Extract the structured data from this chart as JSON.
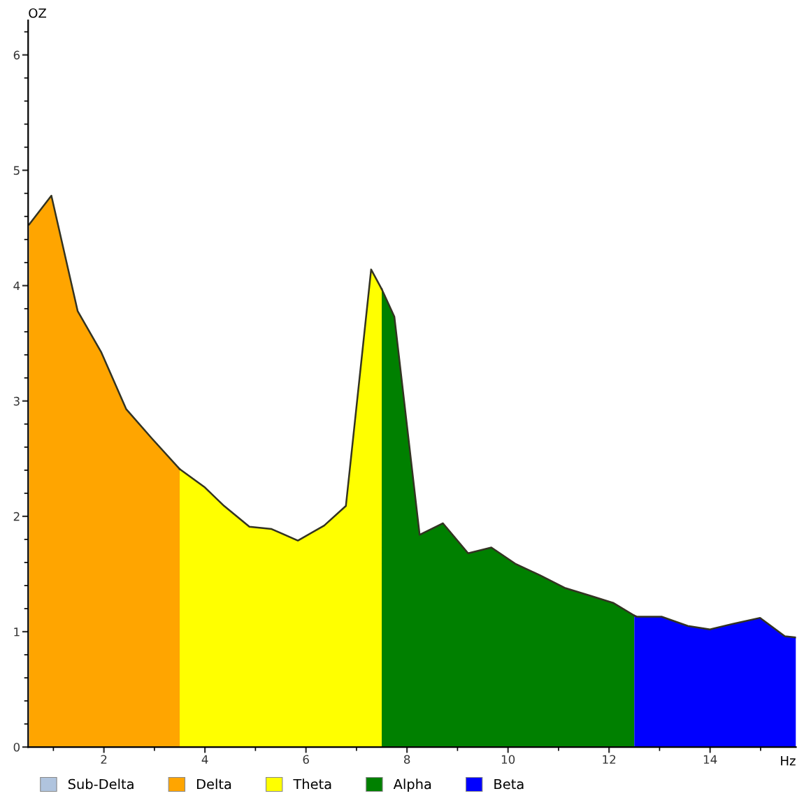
{
  "chart_data": {
    "type": "area",
    "ylabel": "OZ",
    "xlabel": "Hz",
    "series": [
      {
        "name": "Sub-Delta",
        "color": "#b0c4de"
      },
      {
        "name": "Delta",
        "color": "#ffa500",
        "x": [
          0.52,
          0.96,
          1.48,
          1.95,
          2.44,
          2.96,
          3.5
        ],
        "values": [
          4.53,
          4.78,
          3.78,
          3.42,
          2.93,
          2.67,
          2.41
        ]
      },
      {
        "name": "Theta",
        "color": "#ffff00",
        "x": [
          3.5,
          4.0,
          4.38,
          4.88,
          5.32,
          5.84,
          6.36,
          6.79,
          7.29,
          7.5
        ],
        "values": [
          2.41,
          2.25,
          2.09,
          1.91,
          1.89,
          1.79,
          1.92,
          2.09,
          4.14,
          3.97
        ]
      },
      {
        "name": "Alpha",
        "color": "#008000",
        "x": [
          7.5,
          7.75,
          8.25,
          8.71,
          9.21,
          9.67,
          10.14,
          10.63,
          11.12,
          11.64,
          12.08,
          12.5
        ],
        "values": [
          3.97,
          3.73,
          1.84,
          1.94,
          1.68,
          1.73,
          1.59,
          1.49,
          1.38,
          1.31,
          1.25,
          1.14
        ]
      },
      {
        "name": "Beta",
        "color": "#0000ff",
        "x": [
          12.5,
          12.55,
          13.04,
          13.56,
          14.0,
          14.47,
          14.99,
          15.48,
          15.7
        ],
        "values": [
          1.14,
          1.13,
          1.13,
          1.05,
          1.02,
          1.07,
          1.12,
          0.96,
          0.95
        ]
      }
    ],
    "xlim": [
      0.5,
      15.7
    ],
    "ylim": [
      0,
      6.3
    ],
    "xticks": [
      2,
      4,
      6,
      8,
      10,
      12,
      14
    ],
    "yticks": [
      0,
      1,
      2,
      3,
      4,
      5,
      6
    ],
    "grid": false,
    "legend": "bottom"
  }
}
